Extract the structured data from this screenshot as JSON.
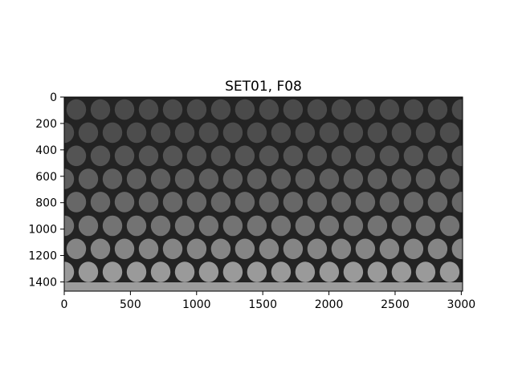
{
  "figure": {
    "title": "SET01, F08",
    "image": {
      "description_kind": "grayscale microscopy-like image of a hexagonal array of discs",
      "background_color": "#232323",
      "extent_x": [
        0,
        3010
      ],
      "extent_y": [
        1470,
        0
      ],
      "rows": [
        {
          "y": 95,
          "offset": 0,
          "gray": "#4a4a4a"
        },
        {
          "y": 270,
          "offset": 1,
          "gray": "#4d4d4d"
        },
        {
          "y": 445,
          "offset": 0,
          "gray": "#545454"
        },
        {
          "y": 620,
          "offset": 1,
          "gray": "#5e5e5e"
        },
        {
          "y": 795,
          "offset": 0,
          "gray": "#676767"
        },
        {
          "y": 975,
          "offset": 1,
          "gray": "#737373"
        },
        {
          "y": 1150,
          "offset": 0,
          "gray": "#858585"
        },
        {
          "y": 1325,
          "offset": 1,
          "gray": "#9a9a9a"
        },
        {
          "y": 1500,
          "offset": 0,
          "gray": "#b4b4b4"
        }
      ]
    },
    "x_axis": {
      "ticks": [
        "0",
        "500",
        "1000",
        "1500",
        "2000",
        "2500",
        "3000"
      ],
      "tick_values": [
        0,
        500,
        1000,
        1500,
        2000,
        2500,
        3000
      ]
    },
    "y_axis": {
      "ticks": [
        "0",
        "200",
        "400",
        "600",
        "800",
        "1000",
        "1200",
        "1400"
      ],
      "tick_values": [
        0,
        200,
        400,
        600,
        800,
        1000,
        1200,
        1400
      ]
    }
  }
}
